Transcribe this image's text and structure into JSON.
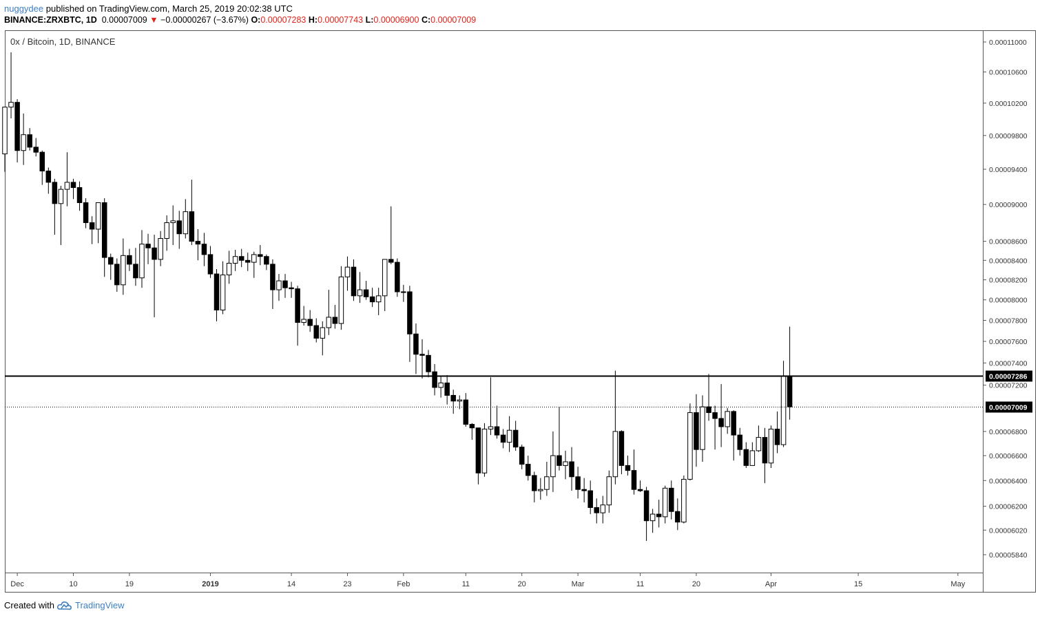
{
  "header": {
    "user": "nuggydee",
    "published": "published on TradingView.com, March 25, 2019 20:02:38 UTC",
    "symbol": "BINANCE:ZRXBTC, 1D",
    "last": "0.00007009",
    "change_arrow": "▼",
    "change": "−0.00000267 (−3.67%)",
    "o_label": "O:",
    "o_value": "0.00007283",
    "h_label": "H:",
    "h_value": "0.00007743",
    "l_label": "L:",
    "l_value": "0.00006900",
    "c_label": "C:",
    "c_value": "0.00007009"
  },
  "chart_title": "0x / Bitcoin, 1D, BINANCE",
  "footer": {
    "created_with": "Created with",
    "brand": "TradingView",
    "logo_icon": "tradingview-cloud-icon"
  },
  "colors": {
    "up_fill": "#ffffff",
    "down_fill": "#000000",
    "wick": "#000000",
    "accent": "#3b7fc4",
    "down_text": "#e0231a"
  },
  "chart_data": {
    "type": "candlestick",
    "title": "0x / Bitcoin, 1D, BINANCE",
    "x_range": [
      "2018-11-29",
      "2019-05-05"
    ],
    "y_axis_ticks": [
      "0.00011000",
      "0.00010600",
      "0.00010200",
      "0.00009800",
      "0.00009400",
      "0.00009000",
      "0.00008600",
      "0.00008400",
      "0.00008200",
      "0.00008000",
      "0.00007800",
      "0.00007600",
      "0.00007400",
      "0.00007200",
      "0.00006800",
      "0.00006600",
      "0.00006400",
      "0.00006200",
      "0.00006020",
      "0.00005840"
    ],
    "y_tick_values": [
      0.00011,
      0.000106,
      0.000102,
      9.8e-05,
      9.4e-05,
      9e-05,
      8.6e-05,
      8.4e-05,
      8.2e-05,
      8e-05,
      7.8e-05,
      7.6e-05,
      7.4e-05,
      7.2e-05,
      6.8e-05,
      6.6e-05,
      6.4e-05,
      6.2e-05,
      6.02e-05,
      5.84e-05
    ],
    "x_axis_ticks": [
      {
        "label": "Dec",
        "date": "2018-12-01",
        "bold": false
      },
      {
        "label": "10",
        "date": "2018-12-10",
        "bold": false
      },
      {
        "label": "19",
        "date": "2018-12-19",
        "bold": false
      },
      {
        "label": "2019",
        "date": "2019-01-01",
        "bold": true
      },
      {
        "label": "14",
        "date": "2019-01-14",
        "bold": false
      },
      {
        "label": "23",
        "date": "2019-01-23",
        "bold": false
      },
      {
        "label": "Feb",
        "date": "2019-02-01",
        "bold": false
      },
      {
        "label": "11",
        "date": "2019-02-11",
        "bold": false
      },
      {
        "label": "20",
        "date": "2019-02-20",
        "bold": false
      },
      {
        "label": "Mar",
        "date": "2019-03-01",
        "bold": false
      },
      {
        "label": "11",
        "date": "2019-03-11",
        "bold": false
      },
      {
        "label": "20",
        "date": "2019-03-20",
        "bold": false
      },
      {
        "label": "Apr",
        "date": "2019-04-01",
        "bold": false
      },
      {
        "label": "15",
        "date": "2019-04-15",
        "bold": false
      },
      {
        "label": "May",
        "date": "2019-05-01",
        "bold": false
      }
    ],
    "horizontal_lines": [
      {
        "name": "resistance",
        "value": 7.286e-05,
        "label": "0.00007286",
        "style": "solid"
      },
      {
        "name": "last-price",
        "value": 7.009e-05,
        "label": "0.00007009",
        "style": "dotted"
      }
    ],
    "candles": {
      "start_date": "2018-11-29",
      "fields": [
        "open",
        "high",
        "low",
        "close"
      ],
      "values": [
        [
          9.58e-05,
          0.0001008,
          9.37e-05,
          0.0001015
        ],
        [
          0.0001015,
          0.0001086,
          0.0001001,
          0.0001021
        ],
        [
          0.0001021,
          0.0001025,
          9.48e-05,
          9.62e-05
        ],
        [
          9.62e-05,
          0.0001007,
          9.45e-05,
          9.81e-05
        ],
        [
          9.81e-05,
          9.89e-05,
          9.62e-05,
          9.66e-05
        ],
        [
          9.66e-05,
          9.77e-05,
          9.55e-05,
          9.6e-05
        ],
        [
          9.6e-05,
          9.62e-05,
          9.22e-05,
          9.38e-05
        ],
        [
          9.38e-05,
          9.42e-05,
          9.12e-05,
          9.25e-05
        ],
        [
          9.25e-05,
          9.29e-05,
          8.67e-05,
          9.01e-05
        ],
        [
          9.01e-05,
          9.21e-05,
          8.56e-05,
          9.17e-05
        ],
        [
          9.17e-05,
          9.6e-05,
          8.98e-05,
          9.25e-05
        ],
        [
          9.25e-05,
          9.29e-05,
          9.06e-05,
          9.19e-05
        ],
        [
          9.19e-05,
          9.26e-05,
          8.93e-05,
          9.02e-05
        ],
        [
          9.02e-05,
          9.07e-05,
          8.74e-05,
          8.8e-05
        ],
        [
          8.8e-05,
          8.87e-05,
          8.57e-05,
          8.73e-05
        ],
        [
          8.73e-05,
          9e-05,
          8.58e-05,
          9.02e-05
        ],
        [
          9.02e-05,
          9.07e-05,
          8.23e-05,
          8.43e-05
        ],
        [
          8.43e-05,
          8.47e-05,
          8.2e-05,
          8.36e-05
        ],
        [
          8.36e-05,
          8.42e-05,
          8.08e-05,
          8.15e-05
        ],
        [
          8.15e-05,
          8.63e-05,
          8.05e-05,
          8.45e-05
        ],
        [
          8.45e-05,
          8.52e-05,
          8.29e-05,
          8.36e-05
        ],
        [
          8.36e-05,
          8.53e-05,
          8.14e-05,
          8.22e-05
        ],
        [
          8.22e-05,
          8.72e-05,
          8.12e-05,
          8.57e-05
        ],
        [
          8.57e-05,
          8.68e-05,
          8.36e-05,
          8.53e-05
        ],
        [
          8.53e-05,
          8.67e-05,
          7.83e-05,
          8.41e-05
        ],
        [
          8.41e-05,
          8.71e-05,
          8.34e-05,
          8.63e-05
        ],
        [
          8.63e-05,
          8.88e-05,
          8.5e-05,
          8.8e-05
        ],
        [
          8.8e-05,
          8.99e-05,
          8.56e-05,
          8.82e-05
        ],
        [
          8.82e-05,
          8.93e-05,
          8.52e-05,
          8.68e-05
        ],
        [
          8.68e-05,
          9.06e-05,
          8.63e-05,
          8.92e-05
        ],
        [
          8.92e-05,
          9.28e-05,
          8.56e-05,
          8.6e-05
        ],
        [
          8.6e-05,
          8.73e-05,
          8.4e-05,
          8.57e-05
        ],
        [
          8.57e-05,
          8.69e-05,
          8.34e-05,
          8.46e-05
        ],
        [
          8.46e-05,
          8.55e-05,
          8.22e-05,
          8.26e-05
        ],
        [
          8.26e-05,
          8.31e-05,
          7.79e-05,
          7.9e-05
        ],
        [
          7.9e-05,
          8.39e-05,
          7.86e-05,
          8.25e-05
        ],
        [
          8.25e-05,
          8.5e-05,
          8.16e-05,
          8.37e-05
        ],
        [
          8.37e-05,
          8.51e-05,
          8.29e-05,
          8.44e-05
        ],
        [
          8.44e-05,
          8.52e-05,
          8.33e-05,
          8.4e-05
        ],
        [
          8.4e-05,
          8.48e-05,
          8.29e-05,
          8.38e-05
        ],
        [
          8.38e-05,
          8.49e-05,
          8.22e-05,
          8.46e-05
        ],
        [
          8.46e-05,
          8.56e-05,
          8.35e-05,
          8.44e-05
        ],
        [
          8.44e-05,
          8.46e-05,
          8.3e-05,
          8.36e-05
        ],
        [
          8.36e-05,
          8.41e-05,
          7.91e-05,
          8.1e-05
        ],
        [
          8.1e-05,
          8.26e-05,
          7.99e-05,
          8.19e-05
        ],
        [
          8.19e-05,
          8.26e-05,
          8.02e-05,
          8.12e-05
        ],
        [
          8.12e-05,
          8.18e-05,
          8.02e-05,
          8.11e-05
        ],
        [
          8.11e-05,
          8.14e-05,
          7.56e-05,
          7.78e-05
        ],
        [
          7.78e-05,
          7.94e-05,
          7.75e-05,
          7.81e-05
        ],
        [
          7.81e-05,
          7.9e-05,
          7.69e-05,
          7.75e-05
        ],
        [
          7.75e-05,
          7.82e-05,
          7.59e-05,
          7.63e-05
        ],
        [
          7.63e-05,
          7.79e-05,
          7.47e-05,
          7.73e-05
        ],
        [
          7.73e-05,
          8.1e-05,
          7.66e-05,
          7.83e-05
        ],
        [
          7.83e-05,
          7.95e-05,
          7.72e-05,
          7.77e-05
        ],
        [
          7.77e-05,
          8.34e-05,
          7.71e-05,
          8.23e-05
        ],
        [
          8.23e-05,
          8.44e-05,
          8.09e-05,
          8.33e-05
        ],
        [
          8.33e-05,
          8.41e-05,
          7.99e-05,
          8.04e-05
        ],
        [
          8.04e-05,
          8.28e-05,
          7.97e-05,
          8.1e-05
        ],
        [
          8.1e-05,
          8.19e-05,
          8e-05,
          8.03e-05
        ],
        [
          8.03e-05,
          8.12e-05,
          7.93e-05,
          7.98e-05
        ],
        [
          7.98e-05,
          8.12e-05,
          7.85e-05,
          8.04e-05
        ],
        [
          8.04e-05,
          8.34e-05,
          7.89e-05,
          8.41e-05
        ],
        [
          8.41e-05,
          8.98e-05,
          8.36e-05,
          8.38e-05
        ],
        [
          8.38e-05,
          8.42e-05,
          8.03e-05,
          8.08e-05
        ],
        [
          8.08e-05,
          8.15e-05,
          7.98e-05,
          8.08e-05
        ],
        [
          8.08e-05,
          8.14e-05,
          7.41e-05,
          7.67e-05
        ],
        [
          7.67e-05,
          7.77e-05,
          7.3e-05,
          7.48e-05
        ],
        [
          7.48e-05,
          7.62e-05,
          7.26e-05,
          7.47e-05
        ],
        [
          7.47e-05,
          7.52e-05,
          7.27e-05,
          7.32e-05
        ],
        [
          7.32e-05,
          7.39e-05,
          7.11e-05,
          7.18e-05
        ],
        [
          7.18e-05,
          7.28e-05,
          7.09e-05,
          7.22e-05
        ],
        [
          7.22e-05,
          7.29e-05,
          7.03e-05,
          7.11e-05
        ],
        [
          7.11e-05,
          7.16e-05,
          6.95e-05,
          7.06e-05
        ],
        [
          7.06e-05,
          7.11e-05,
          6.99e-05,
          7.07e-05
        ],
        [
          7.07e-05,
          7.13e-05,
          6.84e-05,
          6.86e-05
        ],
        [
          6.86e-05,
          6.87e-05,
          6.73e-05,
          6.83e-05
        ],
        [
          6.83e-05,
          6.83e-05,
          6.37e-05,
          6.46e-05
        ],
        [
          6.46e-05,
          6.87e-05,
          6.43e-05,
          6.82e-05
        ],
        [
          6.82e-05,
          7.27e-05,
          6.77e-05,
          6.84e-05
        ],
        [
          6.84e-05,
          7.02e-05,
          6.74e-05,
          6.77e-05
        ],
        [
          6.77e-05,
          6.82e-05,
          6.66e-05,
          6.71e-05
        ],
        [
          6.71e-05,
          6.93e-05,
          6.63e-05,
          6.81e-05
        ],
        [
          6.81e-05,
          6.89e-05,
          6.64e-05,
          6.67e-05
        ],
        [
          6.67e-05,
          6.69e-05,
          6.49e-05,
          6.53e-05
        ],
        [
          6.53e-05,
          6.6e-05,
          6.4e-05,
          6.44e-05
        ],
        [
          6.44e-05,
          6.47e-05,
          6.23e-05,
          6.32e-05
        ],
        [
          6.32e-05,
          6.42e-05,
          6.25e-05,
          6.33e-05
        ],
        [
          6.33e-05,
          6.55e-05,
          6.28e-05,
          6.43e-05
        ],
        [
          6.43e-05,
          6.8e-05,
          6.31e-05,
          6.6e-05
        ],
        [
          6.6e-05,
          7.01e-05,
          6.48e-05,
          6.52e-05
        ],
        [
          6.52e-05,
          6.64e-05,
          6.41e-05,
          6.55e-05
        ],
        [
          6.55e-05,
          6.67e-05,
          6.32e-05,
          6.43e-05
        ],
        [
          6.43e-05,
          6.51e-05,
          6.26e-05,
          6.33e-05
        ],
        [
          6.33e-05,
          6.42e-05,
          6.23e-05,
          6.32e-05
        ],
        [
          6.32e-05,
          6.4e-05,
          6.14e-05,
          6.19e-05
        ],
        [
          6.19e-05,
          6.26e-05,
          6.07e-05,
          6.15e-05
        ],
        [
          6.15e-05,
          6.28e-05,
          6.07e-05,
          6.21e-05
        ],
        [
          6.21e-05,
          6.48e-05,
          6.15e-05,
          6.43e-05
        ],
        [
          6.43e-05,
          7.33e-05,
          6.37e-05,
          6.8e-05
        ],
        [
          6.8e-05,
          6.81e-05,
          6.45e-05,
          6.52e-05
        ],
        [
          6.52e-05,
          6.6e-05,
          6.44e-05,
          6.48e-05
        ],
        [
          6.48e-05,
          6.65e-05,
          6.29e-05,
          6.33e-05
        ],
        [
          6.33e-05,
          6.4e-05,
          6.31e-05,
          6.32e-05
        ],
        [
          6.32e-05,
          6.35e-05,
          5.94e-05,
          6.09e-05
        ],
        [
          6.09e-05,
          6.18e-05,
          6e-05,
          6.14e-05
        ],
        [
          6.14e-05,
          6.25e-05,
          6.04e-05,
          6.12e-05
        ],
        [
          6.12e-05,
          6.36e-05,
          6.07e-05,
          6.34e-05
        ],
        [
          6.34e-05,
          6.4e-05,
          6.1e-05,
          6.16e-05
        ],
        [
          6.16e-05,
          6.26e-05,
          6.02e-05,
          6.08e-05
        ],
        [
          6.08e-05,
          6.44e-05,
          6.07e-05,
          6.41e-05
        ],
        [
          6.41e-05,
          7.04e-05,
          6.4e-05,
          6.96e-05
        ],
        [
          6.96e-05,
          7.12e-05,
          6.51e-05,
          6.65e-05
        ],
        [
          6.65e-05,
          7.11e-05,
          6.55e-05,
          7.01e-05
        ],
        [
          7.01e-05,
          7.3e-05,
          6.89e-05,
          6.96e-05
        ],
        [
          6.96e-05,
          7.02e-05,
          6.65e-05,
          6.91e-05
        ],
        [
          6.91e-05,
          7.21e-05,
          6.67e-05,
          6.84e-05
        ],
        [
          6.84e-05,
          7e-05,
          6.78e-05,
          6.97e-05
        ],
        [
          6.97e-05,
          6.98e-05,
          6.56e-05,
          6.77e-05
        ],
        [
          6.77e-05,
          6.83e-05,
          6.6e-05,
          6.65e-05
        ],
        [
          6.65e-05,
          6.71e-05,
          6.5e-05,
          6.52e-05
        ],
        [
          6.52e-05,
          6.71e-05,
          6.54e-05,
          6.64e-05
        ],
        [
          6.64e-05,
          6.85e-05,
          6.63e-05,
          6.75e-05
        ],
        [
          6.75e-05,
          6.83e-05,
          6.38e-05,
          6.54e-05
        ],
        [
          6.54e-05,
          6.85e-05,
          6.5e-05,
          6.82e-05
        ],
        [
          6.82e-05,
          6.97e-05,
          6.62e-05,
          6.69e-05
        ],
        [
          6.69e-05,
          7.42e-05,
          6.67e-05,
          7.28e-05
        ],
        [
          7.28e-05,
          7.74e-05,
          6.9e-05,
          7.01e-05
        ]
      ]
    }
  }
}
